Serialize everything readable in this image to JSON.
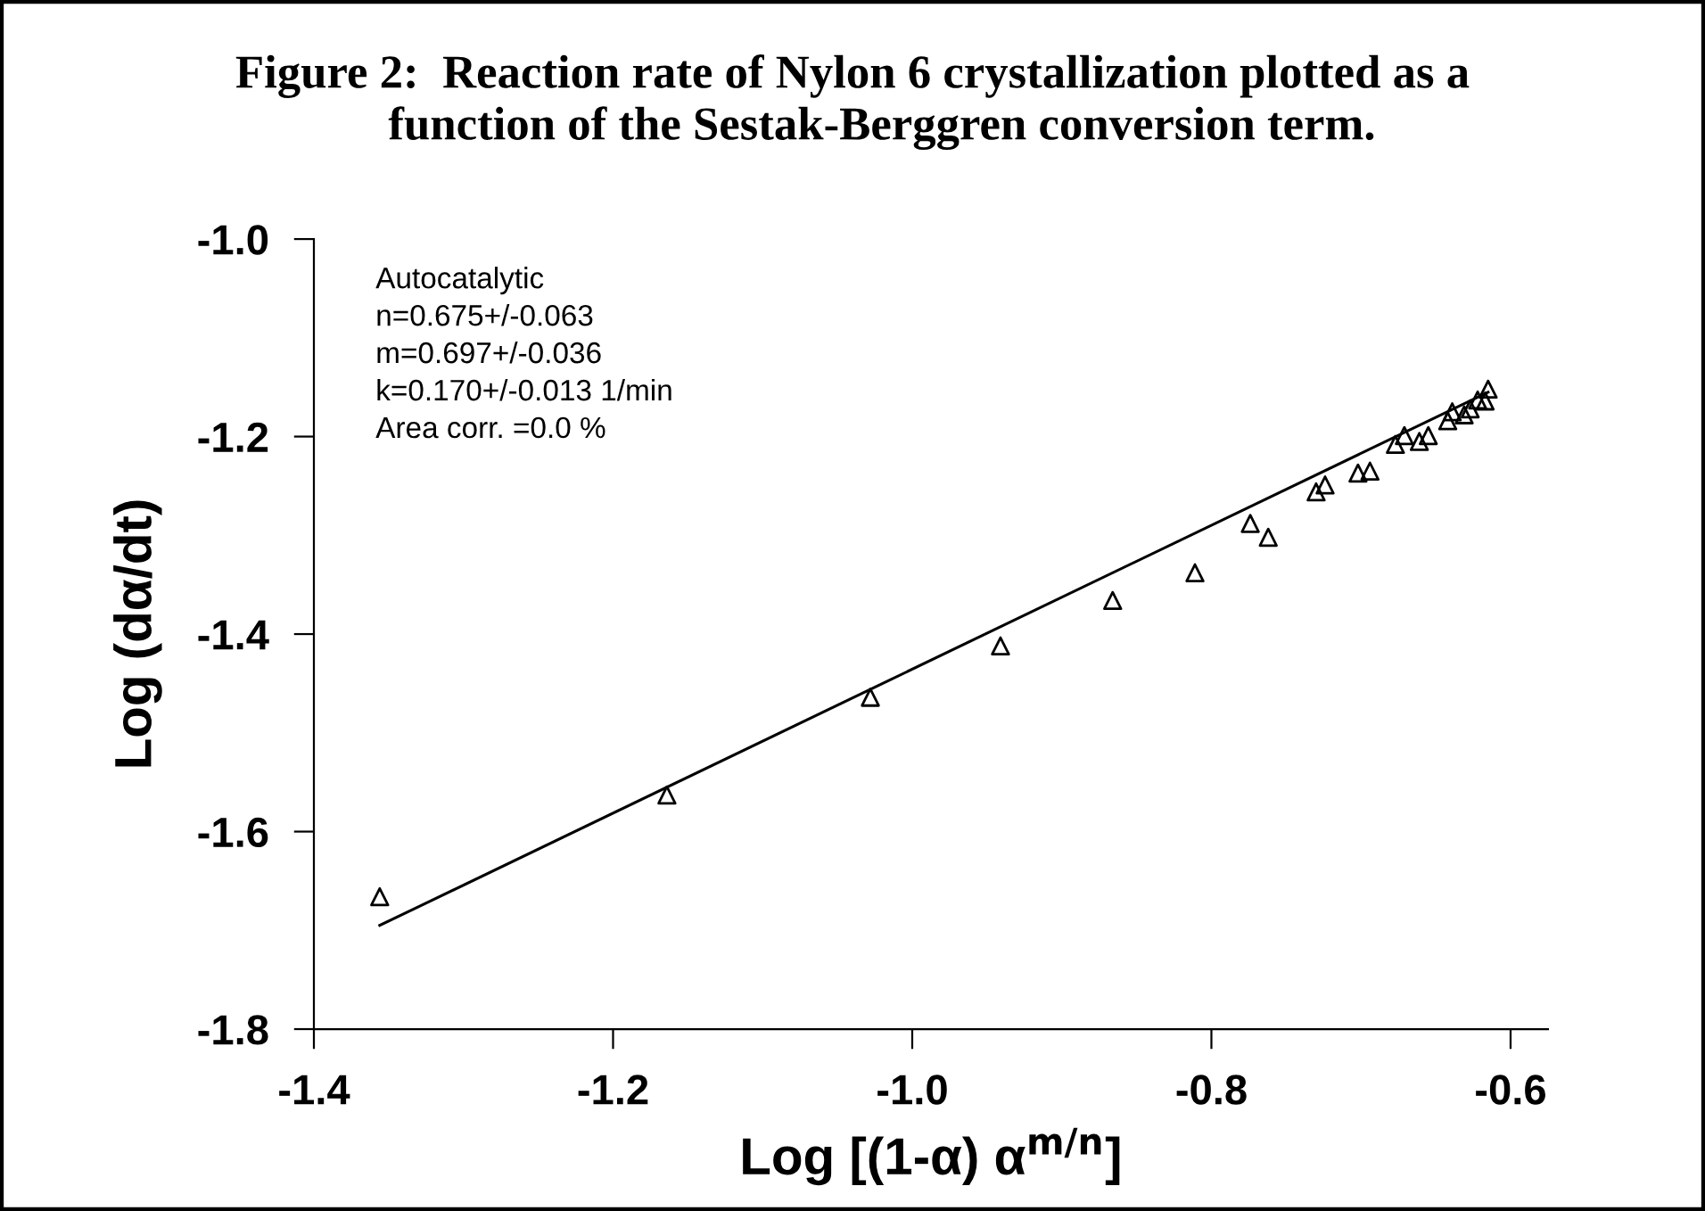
{
  "chart_data": {
    "type": "scatter",
    "title": "Figure 2:  Reaction rate of Nylon 6 crystallization plotted as a\n     function of the Sestak-Berggren conversion term.",
    "xlabel": "Log [(1-α) α$^{m/n}$]",
    "ylabel": "Log (dα/dt)",
    "annotations": [
      "Autocatalytic\nn=0.675+/-0.063\nm=0.697+/-0.036\nk=0.170+/-0.013 1/min\nArea corr. =0.0 %"
    ],
    "series": [
      {
        "color": "#000000",
        "marker": "triangle",
        "x": [
          -1.356,
          -1.164,
          -1.028,
          -0.941,
          -0.866,
          -0.811,
          -0.774,
          -0.762,
          -0.73,
          -0.724,
          -0.702,
          -0.694,
          -0.677,
          -0.671,
          -0.661,
          -0.655,
          -0.642,
          -0.639,
          -0.631,
          -0.627,
          -0.622,
          -0.617,
          -0.615
        ],
        "values": [
          -1.666,
          -1.563,
          -1.464,
          -1.412,
          -1.366,
          -1.338,
          -1.288,
          -1.302,
          -1.256,
          -1.249,
          -1.237,
          -1.235,
          -1.208,
          -1.199,
          -1.205,
          -1.199,
          -1.184,
          -1.175,
          -1.178,
          -1.172,
          -1.163,
          -1.164,
          -1.152
        ]
      },
      {
        "type": "line",
        "color": "#000000",
        "marker": "none",
        "line_style": "solid",
        "x": [
          -1.356,
          -0.615
        ],
        "values": [
          -1.695,
          -1.155
        ]
      }
    ],
    "xlim": [
      -1.4,
      -0.575
    ],
    "xticks": [
      {
        "value": -1.4,
        "label": "-1.4"
      },
      {
        "value": -1.2,
        "label": "-1.2"
      },
      {
        "value": -1.0,
        "label": "-1.0"
      },
      {
        "value": -0.8,
        "label": "-0.8"
      },
      {
        "value": -0.6,
        "label": "-0.6"
      }
    ],
    "ylim": [
      -1.8,
      -1.0
    ],
    "yticks": [
      {
        "value": -1.8,
        "label": "-1.8"
      },
      {
        "value": -1.6,
        "label": "-1.6"
      },
      {
        "value": -1.4,
        "label": "-1.4"
      },
      {
        "value": -1.2,
        "label": "-1.2"
      },
      {
        "value": -1.0,
        "label": "-1.0"
      }
    ],
    "grid": false,
    "legend": false
  }
}
